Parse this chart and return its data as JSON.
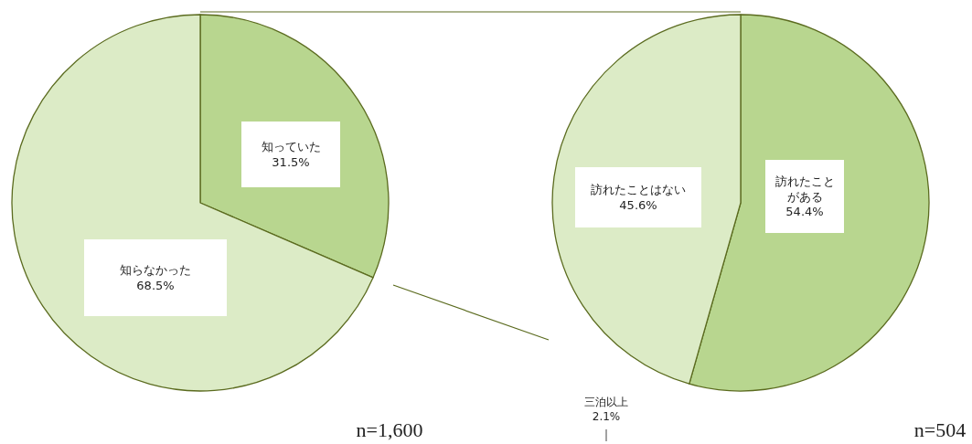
{
  "chart_data": [
    {
      "type": "pie",
      "categories": [
        "知っていた",
        "知らなかった"
      ],
      "values": [
        31.5,
        68.5
      ],
      "value_labels": [
        "31.5%",
        "68.5%"
      ],
      "colors": [
        "#b8d68f",
        "#dcebc6"
      ],
      "annotations": [
        "n=1,600"
      ]
    },
    {
      "type": "pie",
      "categories": [
        "訪れたことがある",
        "訪れたことはない"
      ],
      "values": [
        54.4,
        45.6
      ],
      "value_labels": [
        "54.4%",
        "45.6%"
      ],
      "colors": [
        "#b8d68f",
        "#dcebc6"
      ],
      "annotations": [
        "n=504",
        "三泊以上 2.1%"
      ]
    }
  ]
}
